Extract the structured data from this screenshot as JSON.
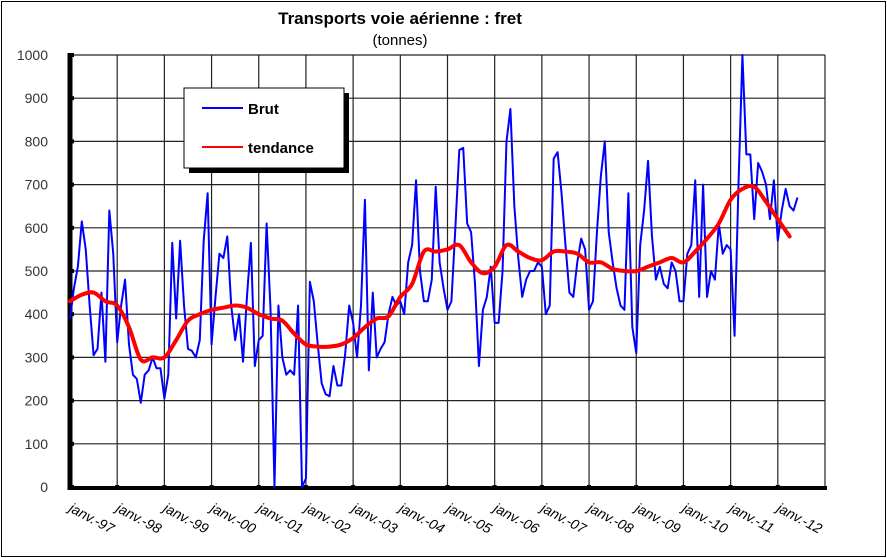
{
  "chart_data": {
    "type": "line",
    "title": "Transports voie aérienne : fret",
    "subtitle": "(tonnes)",
    "xlabel": "",
    "ylabel": "",
    "ylim": [
      0,
      1000
    ],
    "yticks": [
      "0",
      "100",
      "200",
      "300",
      "400",
      "500",
      "600",
      "700",
      "800",
      "900",
      "1000"
    ],
    "xticks": [
      "janv.-97",
      "janv.-98",
      "janv.-99",
      "janv.-00",
      "janv.-01",
      "janv.-02",
      "janv.-03",
      "janv.-04",
      "janv.-05",
      "janv.-06",
      "janv.-07",
      "janv.-08",
      "janv.-09",
      "janv.-10",
      "janv.-11",
      "janv.-12"
    ],
    "start": "1997-01",
    "frequency": "monthly",
    "grid": true,
    "legend_position": "top-left",
    "series": [
      {
        "name": "Brut",
        "color": "#0000ff",
        "values": [
          390,
          460,
          510,
          615,
          550,
          420,
          305,
          320,
          450,
          290,
          640,
          540,
          335,
          420,
          480,
          330,
          260,
          250,
          195,
          260,
          270,
          300,
          275,
          275,
          205,
          260,
          565,
          390,
          570,
          420,
          320,
          315,
          300,
          340,
          570,
          680,
          330,
          440,
          540,
          530,
          580,
          420,
          340,
          400,
          290,
          440,
          565,
          280,
          340,
          350,
          610,
          410,
          0,
          420,
          300,
          260,
          270,
          260,
          420,
          0,
          20,
          475,
          430,
          330,
          240,
          215,
          210,
          280,
          235,
          235,
          310,
          420,
          380,
          300,
          420,
          665,
          270,
          450,
          300,
          320,
          335,
          400,
          440,
          420,
          430,
          400,
          520,
          560,
          710,
          500,
          430,
          430,
          480,
          695,
          520,
          460,
          410,
          430,
          600,
          780,
          785,
          610,
          590,
          470,
          280,
          410,
          440,
          510,
          380,
          380,
          500,
          800,
          875,
          650,
          530,
          440,
          480,
          500,
          500,
          520,
          510,
          400,
          420,
          760,
          775,
          680,
          560,
          450,
          440,
          520,
          575,
          550,
          410,
          430,
          590,
          720,
          800,
          590,
          520,
          460,
          420,
          410,
          680,
          370,
          310,
          560,
          640,
          755,
          580,
          480,
          510,
          470,
          460,
          520,
          500,
          430,
          430,
          540,
          560,
          710,
          440,
          700,
          440,
          500,
          480,
          610,
          540,
          560,
          550,
          350,
          700,
          1000,
          770,
          770,
          620,
          750,
          730,
          700,
          620,
          710,
          570,
          640,
          690,
          650,
          640,
          670
        ]
      },
      {
        "name": "tendance",
        "color": "#ff0000",
        "step_months": 3,
        "values": [
          430,
          445,
          450,
          430,
          420,
          370,
          295,
          300,
          300,
          340,
          385,
          400,
          410,
          415,
          420,
          415,
          400,
          390,
          385,
          355,
          330,
          325,
          325,
          330,
          345,
          370,
          390,
          395,
          440,
          470,
          545,
          545,
          550,
          560,
          520,
          495,
          510,
          560,
          545,
          530,
          525,
          545,
          545,
          540,
          520,
          520,
          505,
          500,
          500,
          510,
          520,
          530,
          520,
          545,
          575,
          610,
          665,
          690,
          695,
          660,
          620,
          580
        ]
      }
    ]
  }
}
